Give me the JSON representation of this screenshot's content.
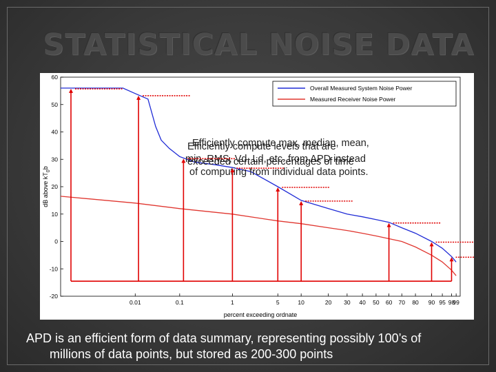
{
  "slide": {
    "title": "STATISTICAL NOISE DATA",
    "caption_line1": "APD is an efficient form of data summary, representing possibly 100’s of",
    "caption_line2": "millions of data points, but stored as 200-300 points"
  },
  "colors": {
    "system_series": "#1f2bd6",
    "receiver_series": "#e0362f",
    "annotation_arrows": "#e00000",
    "slide_background": "#3a3a3a",
    "caption_text": "#ffffff"
  },
  "overlays": {
    "text_a1": "Efficiently compute max, median, mean,",
    "text_a2": "min, RMS, Vd, Ld, etc. from APD instead",
    "text_a3": "of computing from individual data points.",
    "text_b1": "Efficiently compute levels that are",
    "text_b2": "exceeded certain percentages of time"
  },
  "chart_data": {
    "type": "line",
    "xlabel": "percent exceeding ordnate",
    "ylabel": "dB above kT",
    "ylabel_sub": "0",
    "ylabel_tail": "b",
    "xticks": [
      "0.01",
      "0.1",
      "1",
      "5",
      "10",
      "20",
      "30",
      "40",
      "50",
      "60",
      "70",
      "80",
      "90",
      "95",
      "98",
      "99"
    ],
    "ylim": [
      -20,
      60
    ],
    "yticks": [
      "60",
      "50",
      "40",
      "30",
      "20",
      "10",
      "0",
      "-10",
      "-20"
    ],
    "grid": false,
    "legend_position": "top-right",
    "series": [
      {
        "name": "Overall Measured System Noise Power",
        "points": [
          [
            0.0001,
            56
          ],
          [
            0.005,
            56
          ],
          [
            0.01,
            54
          ],
          [
            0.02,
            52
          ],
          [
            0.03,
            42
          ],
          [
            0.04,
            37
          ],
          [
            0.06,
            34
          ],
          [
            0.1,
            31
          ],
          [
            0.2,
            29
          ],
          [
            0.5,
            28
          ],
          [
            1,
            27
          ],
          [
            2,
            25.5
          ],
          [
            5,
            20
          ],
          [
            10,
            15
          ],
          [
            20,
            12
          ],
          [
            30,
            10
          ],
          [
            40,
            9
          ],
          [
            50,
            8
          ],
          [
            60,
            7
          ],
          [
            70,
            5
          ],
          [
            80,
            3
          ],
          [
            90,
            0
          ],
          [
            95,
            -2.5
          ],
          [
            98,
            -5.5
          ],
          [
            99,
            -7.5
          ]
        ]
      },
      {
        "name": "Measured Receiver Noise Power",
        "points": [
          [
            0.0001,
            16.5
          ],
          [
            0.01,
            14
          ],
          [
            0.1,
            12
          ],
          [
            1,
            10
          ],
          [
            5,
            7.5
          ],
          [
            10,
            6.5
          ],
          [
            20,
            5
          ],
          [
            30,
            4
          ],
          [
            40,
            3
          ],
          [
            50,
            2
          ],
          [
            60,
            1
          ],
          [
            70,
            0
          ],
          [
            80,
            -2
          ],
          [
            90,
            -5
          ],
          [
            95,
            -7.5
          ],
          [
            98,
            -10.5
          ],
          [
            99,
            -12.5
          ]
        ]
      }
    ]
  }
}
